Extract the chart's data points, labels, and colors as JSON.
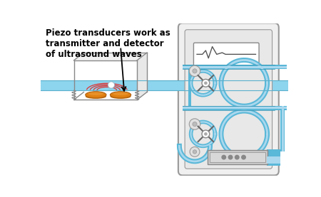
{
  "background_color": "#ffffff",
  "text_label": "Piezo transducers work as\ntransmitter and detector\nof ultrasound waves",
  "text_fontsize": 8.5,
  "tube_color": "#8dd4ee",
  "tube_edge_color": "#5ab0cc",
  "box_edge_color": "#888888",
  "piezo_color": "#e08010",
  "piezo_edge_color": "#b06010",
  "piezo_dark_color": "#c07010",
  "wave_color": "#dd3333",
  "bubble_color": "#ddeeff",
  "device_face": "#f0f0f0",
  "device_edge": "#999999",
  "device_inner_face": "#e8e8e8",
  "blue": "#5ab8d8",
  "blue_light": "#aad8ee",
  "blue_dark": "#3090b0",
  "screen_color": "#ffffff",
  "ecg_color": "#555555",
  "roller_face": "#e0e0e0",
  "roller_edge": "#888888",
  "cross_color": "#666666",
  "bottom_block_face": "#cccccc",
  "bottom_block_edge": "#888888",
  "dot_color": "#888888",
  "sep_color": "#5ab8d8",
  "sep_dark": "#3090b0"
}
